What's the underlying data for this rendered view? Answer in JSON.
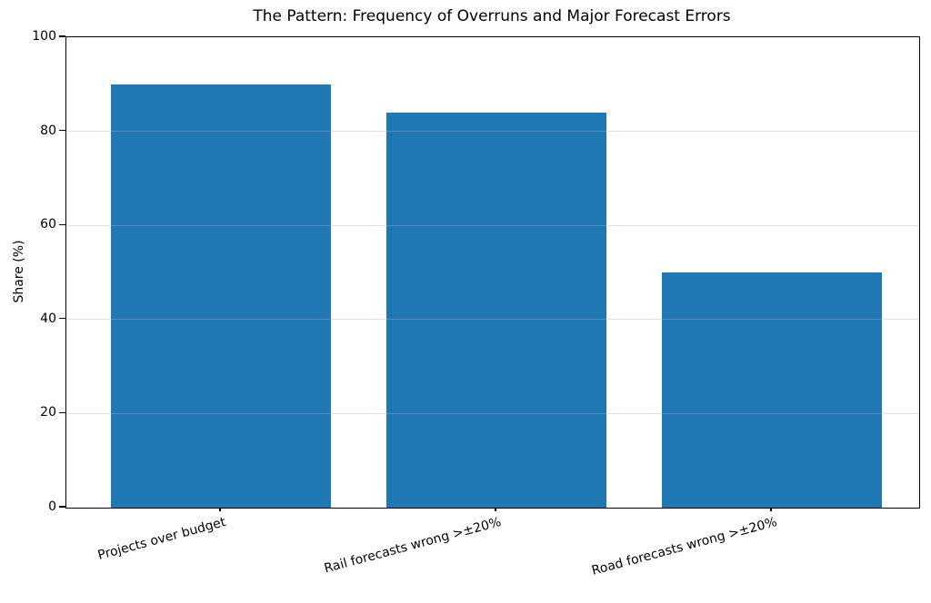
{
  "chart_data": {
    "type": "bar",
    "title": "The Pattern: Frequency of Overruns and Major Forecast Errors",
    "xlabel": "",
    "ylabel": "Share (%)",
    "categories": [
      "Projects over budget",
      "Rail forecasts wrong >±20%",
      "Road forecasts wrong >±20%"
    ],
    "values": [
      90,
      84,
      50
    ],
    "ylim": [
      0,
      100
    ],
    "yticks": [
      0,
      20,
      40,
      60,
      80,
      100
    ],
    "bar_color": "#1f77b4",
    "grid": "horizontal, drawn above bars",
    "legend": "none",
    "background": "#ffffff",
    "text_color": "#000000"
  }
}
